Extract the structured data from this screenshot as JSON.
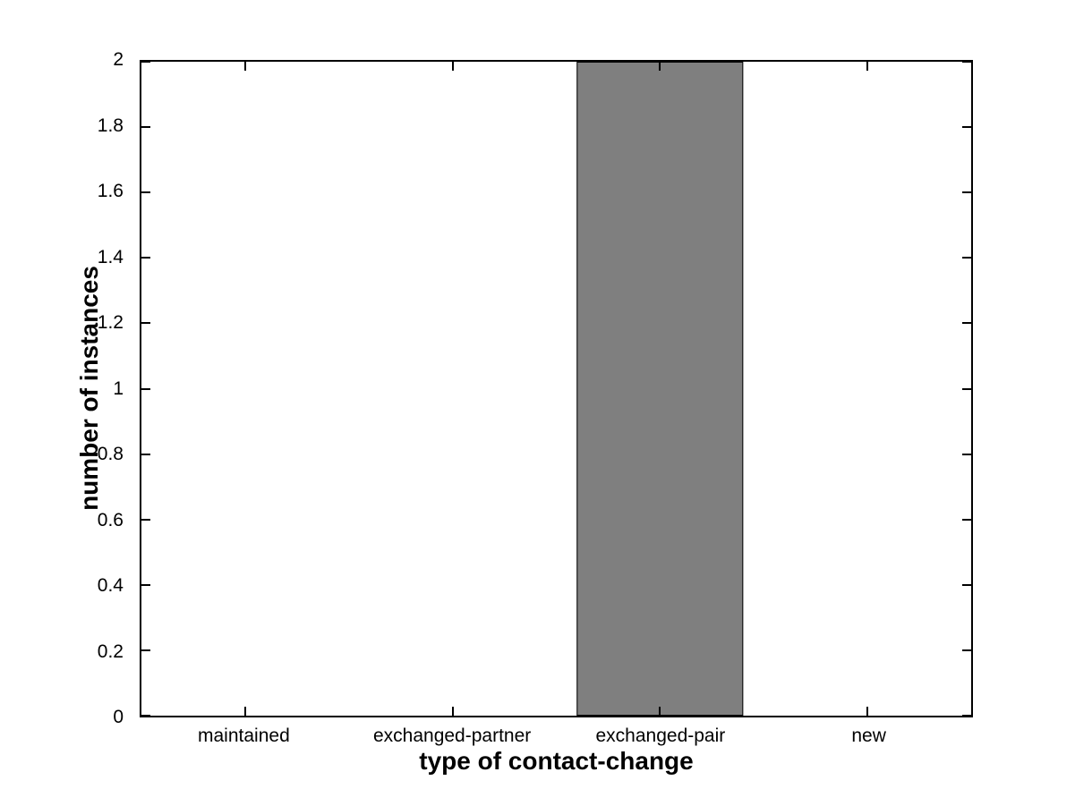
{
  "figure": {
    "background": "#ffffff"
  },
  "chart_data": {
    "type": "bar",
    "title": "",
    "categories": [
      "maintained",
      "exchanged-partner",
      "exchanged-pair",
      "new"
    ],
    "values": [
      0,
      0,
      2,
      0
    ],
    "xlabel": "type of contact-change",
    "ylabel": "number of instances",
    "xlim": [
      0.5,
      4.5
    ],
    "ylim": [
      0,
      2
    ],
    "yticks": [
      0,
      0.2,
      0.4,
      0.6,
      0.8,
      1,
      1.2,
      1.4,
      1.6,
      1.8,
      2
    ],
    "ytick_labels": [
      "0",
      "0.2",
      "0.4",
      "0.6",
      "0.8",
      "1",
      "1.2",
      "1.4",
      "1.6",
      "1.8",
      "2"
    ],
    "bar_width_units": 0.8,
    "bar_color": "#7f7f7f",
    "bar_edge_color": "#000000",
    "axis_color": "#000000",
    "grid": false,
    "legend": null
  }
}
